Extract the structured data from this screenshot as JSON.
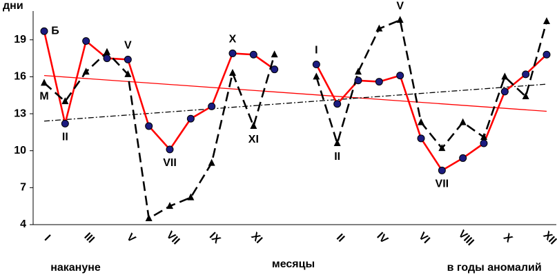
{
  "chart_data": {
    "type": "line",
    "ylabel": "дни",
    "xlabel": "месяцы",
    "x_group_labels": [
      {
        "text": "накануне",
        "from": 0,
        "to": 3
      },
      {
        "text": "в годы аномалий",
        "from": 19,
        "to": 24
      }
    ],
    "categories": [
      "I",
      null,
      "III",
      null,
      "V",
      null,
      "VII",
      null,
      "IX",
      null,
      "XI",
      null,
      null,
      null,
      "II",
      null,
      "IV",
      null,
      "VI",
      null,
      "VIII",
      null,
      "X",
      null,
      "XII"
    ],
    "series": [
      {
        "color": "#ff0000",
        "marker": "circle",
        "marker_color": "#1c1c80",
        "dashed": false,
        "values": [
          19.7,
          12.2,
          18.9,
          17.5,
          17.4,
          12.0,
          10.1,
          12.6,
          13.6,
          17.9,
          17.8,
          16.6,
          null,
          17.0,
          13.8,
          15.7,
          15.6,
          16.1,
          11.0,
          8.4,
          9.4,
          10.6,
          14.8,
          16.2,
          17.8
        ]
      },
      {
        "color": "#000000",
        "marker": "triangle",
        "marker_color": "#000000",
        "dashed": true,
        "values": [
          15.5,
          14.0,
          16.4,
          18.0,
          16.2,
          4.5,
          5.5,
          6.2,
          9.0,
          16.3,
          12.0,
          17.8,
          null,
          16.0,
          10.6,
          16.4,
          19.9,
          20.6,
          12.3,
          10.2,
          12.3,
          11.1,
          16.0,
          14.4,
          20.5
        ]
      }
    ],
    "trends": [
      {
        "color": "#ff0000",
        "style": "solid",
        "values": [
          16.1,
          13.2
        ]
      },
      {
        "color": "#000000",
        "style": "dashdot",
        "values": [
          12.4,
          15.4
        ]
      }
    ],
    "annotations": [
      {
        "text": "Б",
        "series": 0,
        "index": 0,
        "position": "right"
      },
      {
        "text": "М",
        "series": 1,
        "index": 0,
        "position": "below"
      },
      {
        "text": "II",
        "series": 0,
        "index": 1,
        "position": "below"
      },
      {
        "text": "V",
        "series": 0,
        "index": 4,
        "position": "above"
      },
      {
        "text": "VII",
        "series": 0,
        "index": 6,
        "position": "below"
      },
      {
        "text": "X",
        "series": 0,
        "index": 9,
        "position": "above"
      },
      {
        "text": "XI",
        "series": 1,
        "index": 10,
        "position": "below"
      },
      {
        "text": "I",
        "series": 0,
        "index": 13,
        "position": "above"
      },
      {
        "text": "II",
        "series": 1,
        "index": 14,
        "position": "below"
      },
      {
        "text": "V",
        "series": 1,
        "index": 17,
        "position": "above"
      },
      {
        "text": "VII",
        "series": 0,
        "index": 19,
        "position": "below"
      }
    ],
    "ylim": [
      4,
      21
    ],
    "yticks": [
      4,
      7,
      10,
      13,
      16,
      19
    ],
    "grid": false
  }
}
